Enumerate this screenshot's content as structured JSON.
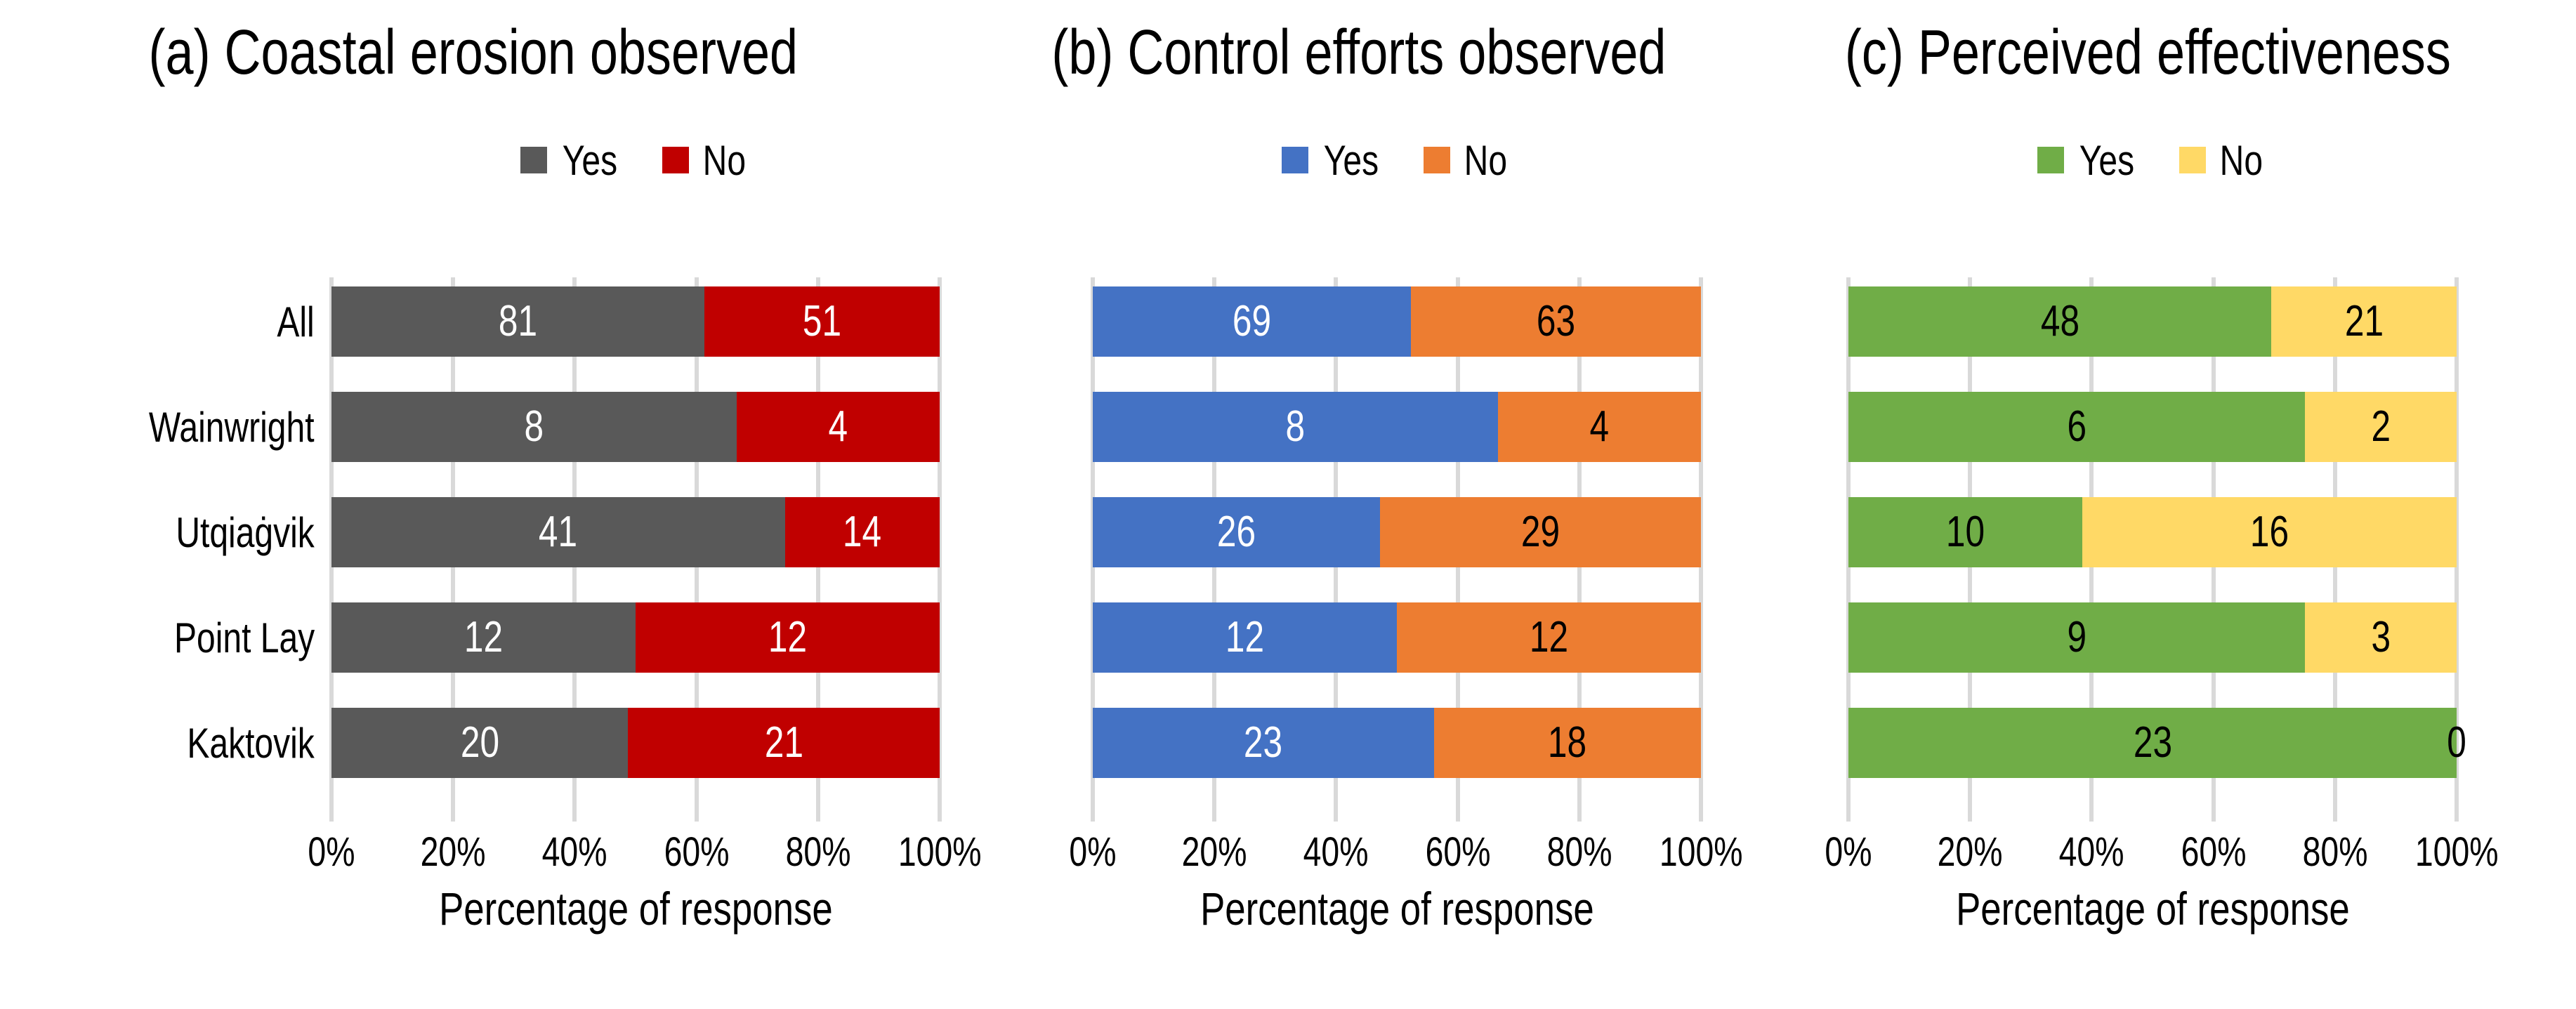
{
  "colors": {
    "background": "#FFFFFF",
    "gridline": "#D9D9D9",
    "text": "#000000"
  },
  "chart_data": [
    {
      "type": "bar",
      "orientation": "horizontal",
      "stacked": true,
      "panel": "a",
      "title": "(a) Coastal erosion observed",
      "categories": [
        "All",
        "Wainwright",
        "Utqiaġvik",
        "Point Lay",
        "Kaktovik"
      ],
      "series": [
        {
          "name": "Yes",
          "color": "#595959",
          "label_color": "#FFFFFF",
          "values": [
            81,
            8,
            41,
            12,
            20
          ]
        },
        {
          "name": "No",
          "color": "#C00000",
          "label_color": "#FFFFFF",
          "values": [
            51,
            4,
            14,
            12,
            21
          ]
        }
      ],
      "xlabel": "Percentage of response",
      "x_ticks": [
        "0%",
        "20%",
        "40%",
        "60%",
        "80%",
        "100%"
      ],
      "xlim": [
        0,
        100
      ],
      "legend_position": "top",
      "category_labels_visible": true,
      "gridlines": true
    },
    {
      "type": "bar",
      "orientation": "horizontal",
      "stacked": true,
      "panel": "b",
      "title": "(b) Control efforts observed",
      "categories": [
        "All",
        "Wainwright",
        "Utqiaġvik",
        "Point Lay",
        "Kaktovik"
      ],
      "series": [
        {
          "name": "Yes",
          "color": "#4472C4",
          "label_color": "#FFFFFF",
          "values": [
            69,
            8,
            26,
            12,
            23
          ]
        },
        {
          "name": "No",
          "color": "#ED7D31",
          "label_color": "#000000",
          "values": [
            63,
            4,
            29,
            12,
            18
          ]
        }
      ],
      "xlabel": "Percentage of response",
      "x_ticks": [
        "0%",
        "20%",
        "40%",
        "60%",
        "80%",
        "100%"
      ],
      "xlim": [
        0,
        100
      ],
      "legend_position": "top",
      "category_labels_visible": false,
      "gridlines": true
    },
    {
      "type": "bar",
      "orientation": "horizontal",
      "stacked": true,
      "panel": "c",
      "title": "(c) Perceived effectiveness",
      "categories": [
        "All",
        "Wainwright",
        "Utqiaġvik",
        "Point Lay",
        "Kaktovik"
      ],
      "series": [
        {
          "name": "Yes",
          "color": "#70AD47",
          "label_color": "#000000",
          "values": [
            48,
            6,
            10,
            9,
            23
          ]
        },
        {
          "name": "No",
          "color": "#FFD966",
          "label_color": "#000000",
          "values": [
            21,
            2,
            16,
            3,
            0
          ]
        }
      ],
      "xlabel": "Percentage of response",
      "x_ticks": [
        "0%",
        "20%",
        "40%",
        "60%",
        "80%",
        "100%"
      ],
      "xlim": [
        0,
        100
      ],
      "legend_position": "top",
      "category_labels_visible": false,
      "gridlines": true
    }
  ]
}
